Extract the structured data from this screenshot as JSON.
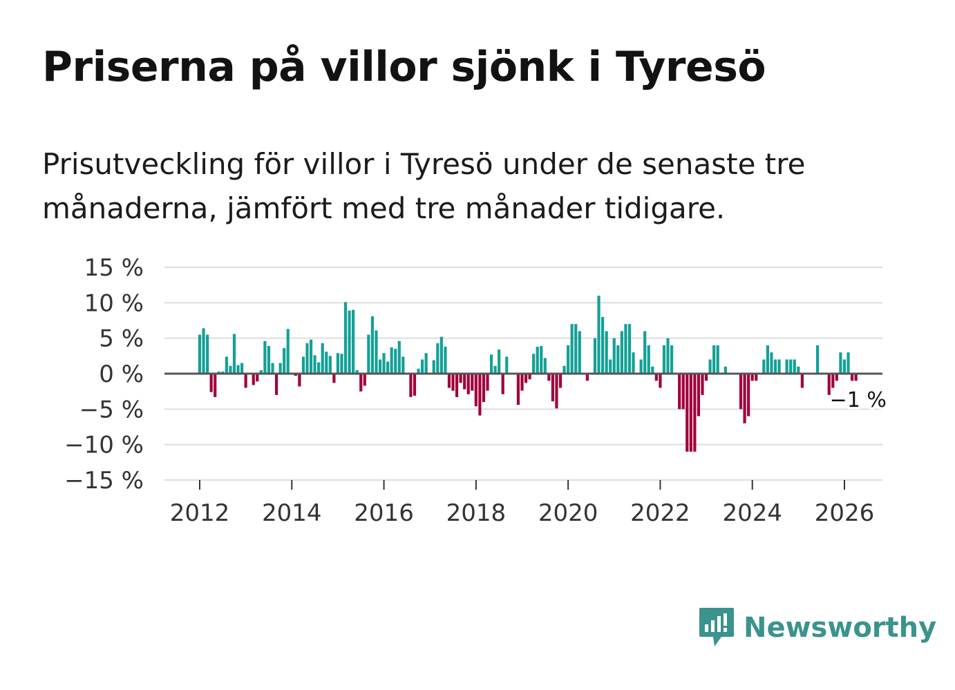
{
  "title": "Priserna på villor sjönk i Tyresö",
  "subtitle": "Prisutveckling för villor i Tyresö under de senaste tre månaderna, jämfört med tre månader tidigare.",
  "brand": "Newsworthy",
  "colors": {
    "positive": "#14a096",
    "negative": "#a0003c",
    "brand": "#3a938d",
    "grid": "#dddddd",
    "zero": "#555555"
  },
  "chart_data": {
    "type": "bar",
    "title": "Priserna på villor sjönk i Tyresö",
    "ylim": [
      -15,
      15
    ],
    "yticks": [
      15,
      10,
      5,
      0,
      -5,
      -10,
      -15
    ],
    "ytick_labels": [
      "15 %",
      "10 %",
      "5 %",
      "0 %",
      "−5 %",
      "−10 %",
      "−15 %"
    ],
    "xticks": [
      2012,
      2014,
      2016,
      2018,
      2020,
      2022,
      2024,
      2026
    ],
    "xtick_labels": [
      "2012",
      "2014",
      "2016",
      "2018",
      "2020",
      "2022",
      "2024",
      "2026"
    ],
    "start": 2012.0,
    "step_years": 0.08333,
    "values": [
      5.5,
      6.4,
      5.5,
      -2.6,
      -3.3,
      0.3,
      0.3,
      2.4,
      1.1,
      5.6,
      1.2,
      1.5,
      -2.0,
      0,
      -1.6,
      -1.1,
      0.5,
      4.6,
      3.9,
      1.5,
      -3.0,
      1.5,
      3.6,
      6.3,
      0,
      -0.3,
      -1.8,
      2.4,
      4.3,
      4.8,
      2.6,
      1.6,
      4.3,
      3.1,
      2.5,
      -1.3,
      2.9,
      2.8,
      10.1,
      8.9,
      9.0,
      0.5,
      -2.5,
      -1.7,
      5.5,
      8.1,
      6.1,
      2.0,
      2.9,
      1.7,
      3.7,
      3.5,
      4.6,
      2.4,
      0,
      -3.3,
      -3.1,
      0.7,
      2.0,
      2.9,
      0,
      1.9,
      4.3,
      5.2,
      3.8,
      -2.0,
      -2.4,
      -3.3,
      -1.3,
      -2.2,
      -2.9,
      -2.4,
      -4.6,
      -5.9,
      -4.0,
      -2.4,
      2.7,
      1.1,
      3.4,
      -2.9,
      2.4,
      0,
      0,
      -4.4,
      -2.4,
      -1.3,
      -0.8,
      2.8,
      3.8,
      3.9,
      2.2,
      -1.0,
      -3.9,
      -4.9,
      -2.0,
      1.1,
      4.0,
      7.0,
      7.0,
      6.0,
      0,
      -1.0,
      0,
      5.0,
      11.0,
      8.0,
      6.0,
      2.0,
      5.0,
      4.0,
      6.0,
      7.0,
      7.0,
      3.0,
      0,
      2.0,
      6.0,
      4.0,
      1.0,
      -1.0,
      -2.0,
      4.0,
      5.0,
      4.0,
      0,
      -5.0,
      -5.0,
      -11.0,
      -11.0,
      -11.0,
      -6.0,
      -3.0,
      -1.0,
      2.0,
      4.0,
      4.0,
      0,
      1.0,
      0,
      0,
      0,
      -5.0,
      -7.0,
      -6.0,
      -1.0,
      -1.0,
      0,
      2.0,
      4.0,
      3.0,
      2.0,
      2.0,
      0,
      2.0,
      2.0,
      2.0,
      1.0,
      -2.0,
      0,
      0,
      0,
      4.0,
      0,
      0,
      -3.0,
      -2.0,
      -1.0,
      3.0,
      2.0,
      3.0,
      -1.0,
      -1.0
    ],
    "annotation": "−1 %"
  }
}
